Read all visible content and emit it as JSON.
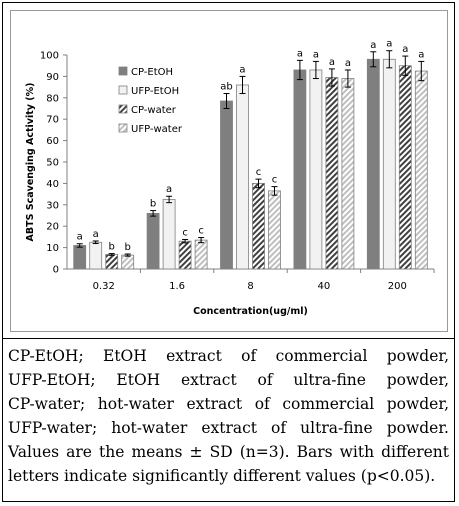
{
  "chart_data": {
    "type": "bar",
    "ylabel": "ABTS Scavenging Activity (%)",
    "xlabel": "Concentration(ug/ml)",
    "ylim": [
      0,
      100
    ],
    "yticks": [
      0,
      10,
      20,
      30,
      40,
      50,
      60,
      70,
      80,
      90,
      100
    ],
    "categories": [
      "0.32",
      "1.6",
      "8",
      "40",
      "200"
    ],
    "legend_position": "top-left",
    "series": [
      {
        "name": "CP-EtOH",
        "style": "solid-gray",
        "values": [
          11,
          26,
          78.5,
          93,
          98
        ],
        "errors": [
          0.8,
          1.3,
          3.5,
          4.5,
          3.5
        ],
        "letters": [
          "a",
          "b",
          "ab",
          "a",
          "a"
        ]
      },
      {
        "name": "UFP-EtOH",
        "style": "white",
        "values": [
          12.5,
          32.5,
          86,
          93,
          98
        ],
        "errors": [
          0.6,
          1.5,
          4.0,
          4.0,
          4.0
        ],
        "letters": [
          "a",
          "a",
          "a",
          "a",
          "a"
        ]
      },
      {
        "name": "CP-water",
        "style": "hatched",
        "values": [
          6.8,
          13,
          40,
          89.5,
          95
        ],
        "errors": [
          0.4,
          0.8,
          2.0,
          4.0,
          4.5
        ],
        "letters": [
          "b",
          "c",
          "c",
          "a",
          "a"
        ]
      },
      {
        "name": "UFP-water",
        "style": "light-hatched",
        "values": [
          6.5,
          13.5,
          36.5,
          89,
          92.5
        ],
        "errors": [
          0.5,
          1.2,
          2.0,
          4.0,
          4.5
        ],
        "letters": [
          "b",
          "c",
          "c",
          "a",
          "a"
        ]
      }
    ]
  },
  "caption": {
    "lines": [
      "CP-EtOH; EtOH extract of commercial powder,",
      "UFP-EtOH; EtOH extract of ultra-fine powder,",
      "CP-water; hot-water extract of commercial powder,",
      "UFP-water; hot-water extract of ultra-fine powder.",
      "Values are the means ± SD (n=3). Bars with different",
      "letters indicate significantly different values (p<0.05)."
    ]
  },
  "colors": {
    "cp_etoh_fill": "#7f7f7f",
    "ufp_etoh_fill": "#f2f2f2",
    "hatch_dark": "#404040",
    "hatch_light": "#bfbfbf",
    "axis": "#808080"
  }
}
